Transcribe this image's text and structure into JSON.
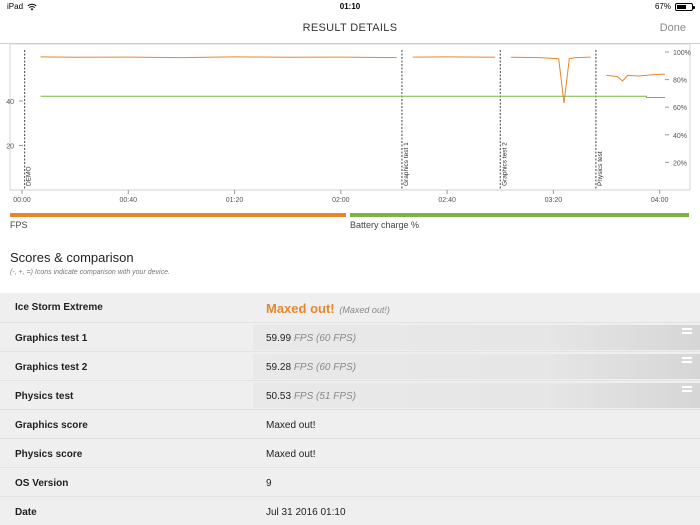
{
  "status_bar": {
    "device": "iPad",
    "time": "01:10",
    "battery_text": "67%",
    "battery_level": 0.67,
    "wifi_icon": "wifi-icon",
    "battery_icon": "battery-icon"
  },
  "nav": {
    "title": "RESULT DETAILS",
    "done_label": "Done"
  },
  "chart_data": {
    "type": "line",
    "x_unit": "mm:ss",
    "x_ticks": [
      "00:00",
      "00:40",
      "01:20",
      "02:00",
      "02:40",
      "03:20",
      "04:00"
    ],
    "x_tick_seconds": [
      0,
      40,
      80,
      120,
      160,
      200,
      240
    ],
    "xlim": [
      0,
      242
    ],
    "left_axis": {
      "label": "FPS",
      "ticks": [
        20,
        40
      ],
      "ylim": [
        0,
        62
      ]
    },
    "right_axis": {
      "label": "Battery charge %",
      "ticks": [
        "20%",
        "40%",
        "60%",
        "80%",
        "100%"
      ],
      "tick_values": [
        20,
        40,
        60,
        80,
        100
      ],
      "ylim": [
        0,
        100
      ]
    },
    "segment_markers": [
      {
        "label": "DEMO",
        "x": 1
      },
      {
        "label": "Graphics test 1",
        "x": 143
      },
      {
        "label": "Graphics test 2",
        "x": 180
      },
      {
        "label": "Physics test",
        "x": 216
      }
    ],
    "series": [
      {
        "name": "FPS",
        "color": "#e8862b",
        "axis": "left",
        "segments": [
          {
            "x": [
              7,
              20,
              40,
              60,
              80,
              100,
              120,
              141
            ],
            "y": [
              59.8,
              59.6,
              59.7,
              59.5,
              59.8,
              59.6,
              59.7,
              59.5
            ]
          },
          {
            "x": [
              147,
              160,
              178
            ],
            "y": [
              59.7,
              59.8,
              59.6
            ]
          },
          {
            "x": [
              184,
              195,
              202,
              204,
              206,
              208,
              214
            ],
            "y": [
              59.6,
              59.5,
              59.0,
              39.0,
              59.0,
              59.4,
              59.7
            ]
          },
          {
            "x": [
              220,
              224,
              226,
              228,
              232,
              240,
              242
            ],
            "y": [
              51.5,
              51.0,
              49.0,
              51.5,
              51.2,
              52.0,
              52.0
            ]
          }
        ]
      },
      {
        "name": "Battery charge %",
        "color": "#7cb342",
        "axis": "right",
        "segments": [
          {
            "x": [
              7,
              235,
              235,
              242
            ],
            "y": [
              68,
              68,
              67,
              67
            ]
          }
        ]
      }
    ],
    "legend": [
      {
        "name": "FPS",
        "color": "#e8862b"
      },
      {
        "name": "Battery charge %",
        "color": "#7cb342"
      }
    ]
  },
  "scores": {
    "title": "Scores & comparison",
    "note": "(-, +, =) Icons indicate comparison with your device."
  },
  "table": {
    "rows": [
      {
        "label": "Ice Storm Extreme",
        "value_main": "Maxed out!",
        "value_sub": "(Maxed out!)"
      },
      {
        "label": "Graphics test 1",
        "value": "59.99",
        "unit": "FPS (60 FPS)",
        "comparison_icon": "equals-icon"
      },
      {
        "label": "Graphics test 2",
        "value": "59.28",
        "unit": "FPS (60 FPS)",
        "comparison_icon": "equals-icon"
      },
      {
        "label": "Physics test",
        "value": "50.53",
        "unit": "FPS (51 FPS)",
        "comparison_icon": "equals-icon"
      },
      {
        "label": "Graphics score",
        "value": "Maxed out!"
      },
      {
        "label": "Physics score",
        "value": "Maxed out!"
      },
      {
        "label": "OS Version",
        "value": "9"
      },
      {
        "label": "Date",
        "value": "Jul 31 2016 01:10"
      }
    ]
  },
  "colors": {
    "fps": "#e8862b",
    "battery": "#7cb342",
    "accent": "#e8862b"
  }
}
